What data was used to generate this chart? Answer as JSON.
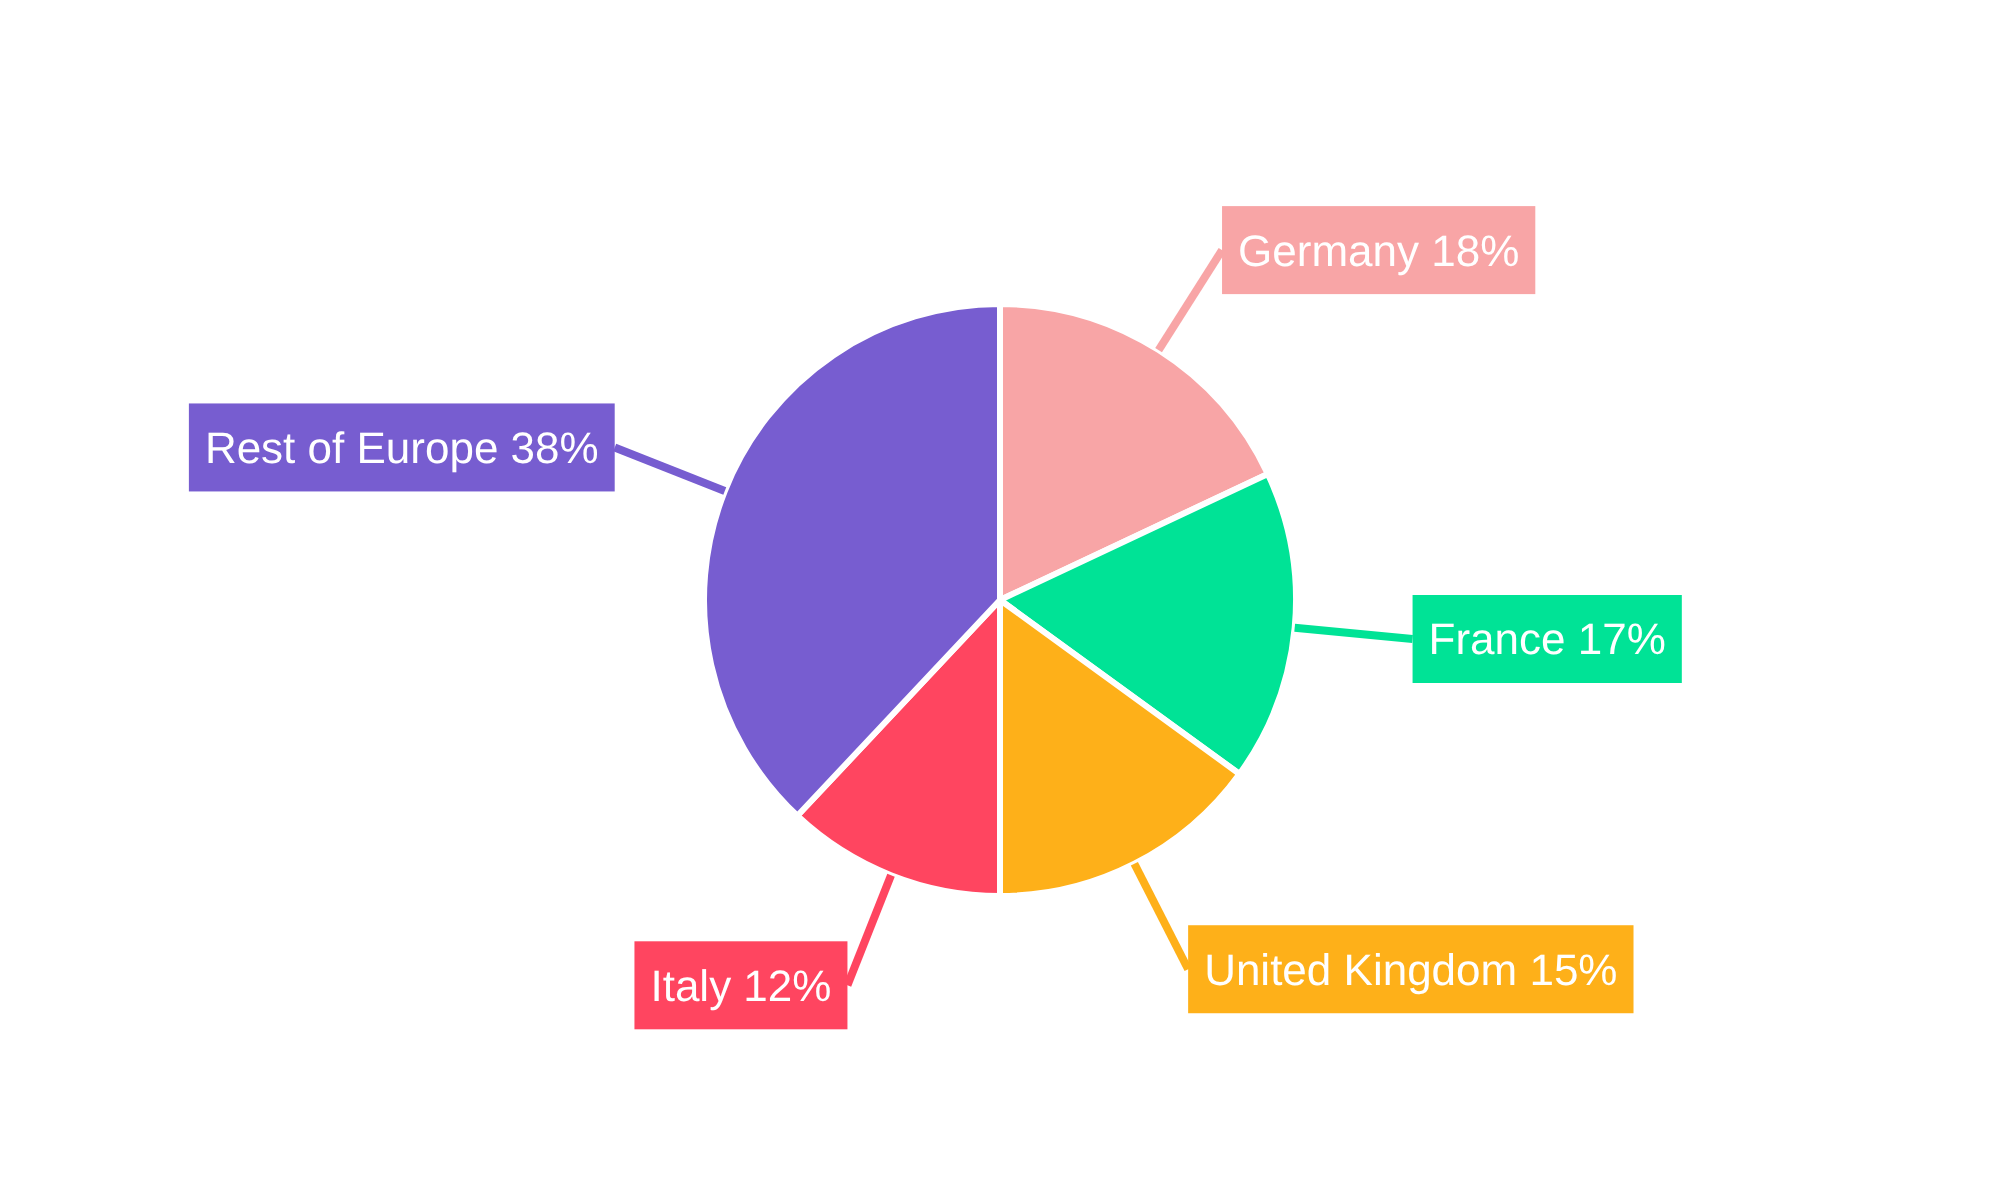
{
  "chart_data": {
    "type": "pie",
    "categories": [
      "Germany",
      "France",
      "United Kingdom",
      "Italy",
      "Rest of Europe"
    ],
    "values": [
      18,
      17,
      15,
      12,
      38
    ],
    "value_labels": [
      "18%",
      "17%",
      "15%",
      "12%",
      "38%"
    ],
    "colors": [
      "#f8a5a6",
      "#00e396",
      "#feb019",
      "#ff4560",
      "#775dd0"
    ]
  }
}
